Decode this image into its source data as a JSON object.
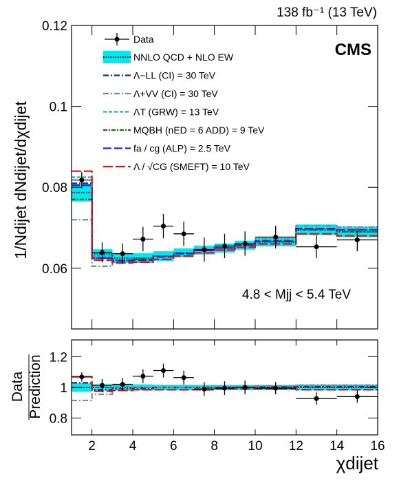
{
  "chart_data": [
    {
      "type": "step",
      "header": "138 fb⁻¹ (13 TeV)",
      "experiment": "CMS",
      "annotation": "4.8 < Mjj < 5.4 TeV",
      "ylabel": "1/Ndijet dNdijet/dχdijet",
      "xlim": [
        1,
        16
      ],
      "ylim": [
        0.045,
        0.12
      ],
      "yticks": [
        0.06,
        0.08,
        0.1,
        0.12
      ],
      "bin_edges": [
        1,
        2,
        3,
        4,
        5,
        6,
        7,
        8,
        9,
        10,
        12,
        14,
        16
      ],
      "data": {
        "name": "Data",
        "x": [
          1.5,
          2.5,
          3.5,
          4.5,
          5.5,
          6.5,
          7.5,
          8.5,
          9.5,
          11,
          13,
          15
        ],
        "values": [
          0.0818,
          0.0639,
          0.0636,
          0.0672,
          0.0704,
          0.0685,
          0.0646,
          0.0655,
          0.0661,
          0.0677,
          0.0653,
          0.067
        ],
        "errors": [
          0.002,
          0.0025,
          0.0025,
          0.003,
          0.003,
          0.003,
          0.003,
          0.003,
          0.003,
          0.0028,
          0.0028,
          0.0028
        ]
      },
      "band": {
        "name": "NNLO QCD + NLO EW",
        "color": "#00e8f0",
        "values": [
          0.0787,
          0.0635,
          0.0625,
          0.0625,
          0.063,
          0.0638,
          0.0645,
          0.065,
          0.0657,
          0.0665,
          0.0695,
          0.069
        ],
        "errors": [
          0.0022,
          0.0012,
          0.0012,
          0.0012,
          0.0012,
          0.0011,
          0.0011,
          0.0011,
          0.0011,
          0.0011,
          0.0013,
          0.0013
        ]
      },
      "series": [
        {
          "name": "Λ−LL (CI) = 30 TeV",
          "color": "#1a2a6c",
          "dash": "8 3 2 3",
          "values": [
            0.081,
            0.0625,
            0.062,
            0.0622,
            0.063,
            0.0637,
            0.0645,
            0.065,
            0.0657,
            0.0667,
            0.0698,
            0.0695
          ]
        },
        {
          "name": "Λ+VV (CI) = 30 TeV",
          "color": "#7a8a9a",
          "dash": "8 3 2 3",
          "values": [
            0.072,
            0.0605,
            0.0615,
            0.062,
            0.063,
            0.0638,
            0.0647,
            0.0653,
            0.066,
            0.0672,
            0.0705,
            0.0702
          ]
        },
        {
          "name": "ΛT (GRW) = 13 TeV",
          "color": "#2aa0e0",
          "dash": "5 3",
          "values": [
            0.0825,
            0.063,
            0.062,
            0.0622,
            0.063,
            0.0636,
            0.0644,
            0.065,
            0.0657,
            0.0666,
            0.0695,
            0.069
          ]
        },
        {
          "name": "MQBH (nED = 6 ADD) = 9 TeV",
          "color": "#1a6a1a",
          "dash": "6 2 2 2",
          "values": [
            0.077,
            0.0625,
            0.062,
            0.0622,
            0.063,
            0.0637,
            0.0645,
            0.065,
            0.0657,
            0.0666,
            0.0695,
            0.069
          ]
        },
        {
          "name": "fa / cg (ALP) = 2.5 TeV",
          "color": "#2020e0",
          "dash": "12 4",
          "values": [
            0.0805,
            0.0625,
            0.0618,
            0.062,
            0.0628,
            0.0636,
            0.0644,
            0.065,
            0.0657,
            0.0667,
            0.0698,
            0.0695
          ]
        },
        {
          "name": "Λ / √CG (SMEFT) = 10 TeV",
          "color": "#e01010",
          "dash": "14 4",
          "values": [
            0.084,
            0.062,
            0.0613,
            0.0615,
            0.0622,
            0.063,
            0.0638,
            0.0645,
            0.0652,
            0.066,
            0.0685,
            0.068
          ]
        }
      ]
    },
    {
      "type": "step",
      "ylabel": [
        "Data",
        "Prediction"
      ],
      "xlabel": "χdijet",
      "xlim": [
        1,
        16
      ],
      "ylim": [
        0.69,
        1.31
      ],
      "xticks": [
        2,
        4,
        6,
        8,
        10,
        12,
        14,
        16
      ],
      "yticks": [
        0.8,
        1,
        1.2
      ],
      "bin_edges": [
        1,
        2,
        3,
        4,
        5,
        6,
        7,
        8,
        9,
        10,
        12,
        14,
        16
      ],
      "data": {
        "x": [
          1.5,
          2.5,
          3.5,
          4.5,
          5.5,
          6.5,
          7.5,
          8.5,
          9.5,
          11,
          13,
          15
        ],
        "values": [
          1.068,
          1.014,
          1.02,
          1.073,
          1.11,
          1.064,
          0.99,
          0.995,
          1.0,
          0.995,
          0.927,
          0.94
        ],
        "errors": [
          0.03,
          0.04,
          0.04,
          0.045,
          0.045,
          0.045,
          0.045,
          0.045,
          0.045,
          0.04,
          0.04,
          0.04
        ]
      },
      "band": {
        "color": "#00e8f0",
        "values": [
          1,
          1,
          1,
          1,
          1,
          1,
          1,
          1,
          1,
          1,
          1,
          1
        ],
        "errors": [
          0.028,
          0.02,
          0.02,
          0.02,
          0.018,
          0.018,
          0.017,
          0.017,
          0.017,
          0.017,
          0.019,
          0.019
        ]
      },
      "series": [
        {
          "color": "#1a2a6c",
          "dash": "8 3 2 3",
          "values": [
            1.03,
            0.985,
            0.99,
            0.995,
            1,
            1,
            1,
            1,
            1,
            1.003,
            1.005,
            1.005
          ]
        },
        {
          "color": "#7a8a9a",
          "dash": "8 3 2 3",
          "values": [
            0.915,
            0.955,
            0.985,
            1,
            1,
            1,
            1,
            1.005,
            1.005,
            1.01,
            1.015,
            1.015
          ]
        },
        {
          "color": "#e01010",
          "dash": "14 4",
          "values": [
            1.07,
            0.975,
            0.98,
            0.985,
            0.985,
            0.985,
            0.985,
            0.99,
            0.99,
            0.99,
            0.985,
            0.985
          ]
        }
      ]
    }
  ]
}
